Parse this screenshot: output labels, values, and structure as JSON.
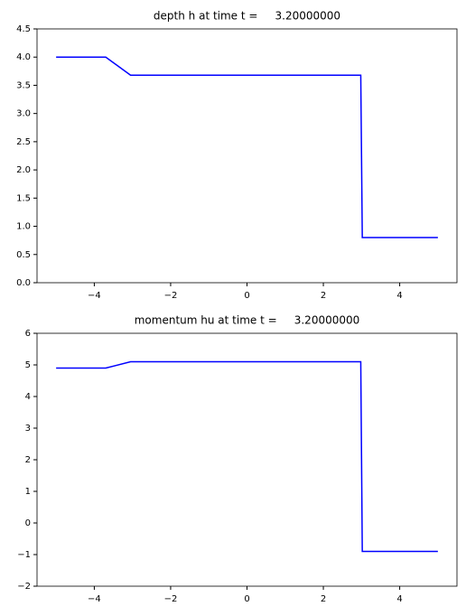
{
  "chart_data": [
    {
      "type": "line",
      "title": "depth h at time t =     3.20000000",
      "x": [
        -5,
        -3.7,
        -3.05,
        2.98,
        3.02,
        5
      ],
      "values": [
        4,
        4,
        3.68,
        3.68,
        0.8,
        0.8
      ],
      "color": "#0000ff",
      "xlim": [
        -5.5,
        5.5
      ],
      "ylim": [
        0,
        4.5
      ],
      "xticks": [
        {
          "value": -4,
          "label": "−4"
        },
        {
          "value": -2,
          "label": "−2"
        },
        0,
        2,
        4
      ],
      "yticks": [
        {
          "value": 0,
          "label": "0.0"
        },
        {
          "value": 0.5,
          "label": "0.5"
        },
        {
          "value": 1,
          "label": "1.0"
        },
        {
          "value": 1.5,
          "label": "1.5"
        },
        {
          "value": 2,
          "label": "2.0"
        },
        {
          "value": 2.5,
          "label": "2.5"
        },
        {
          "value": 3,
          "label": "3.0"
        },
        {
          "value": 3.5,
          "label": "3.5"
        },
        {
          "value": 4,
          "label": "4.0"
        },
        {
          "value": 4.5,
          "label": "4.5"
        }
      ]
    },
    {
      "type": "line",
      "title": "momentum hu at time t =     3.20000000",
      "x": [
        -5,
        -3.7,
        -3.05,
        2.98,
        3.02,
        5
      ],
      "values": [
        4.9,
        4.9,
        5.1,
        5.1,
        -0.9,
        -0.9
      ],
      "color": "#0000ff",
      "xlim": [
        -5.5,
        5.5
      ],
      "ylim": [
        -2,
        6
      ],
      "xticks": [
        {
          "value": -4,
          "label": "−4"
        },
        {
          "value": -2,
          "label": "−2"
        },
        0,
        2,
        4
      ],
      "yticks": [
        {
          "value": -2,
          "label": "−2"
        },
        {
          "value": -1,
          "label": "−1"
        },
        0,
        1,
        2,
        3,
        4,
        5,
        6
      ]
    }
  ]
}
